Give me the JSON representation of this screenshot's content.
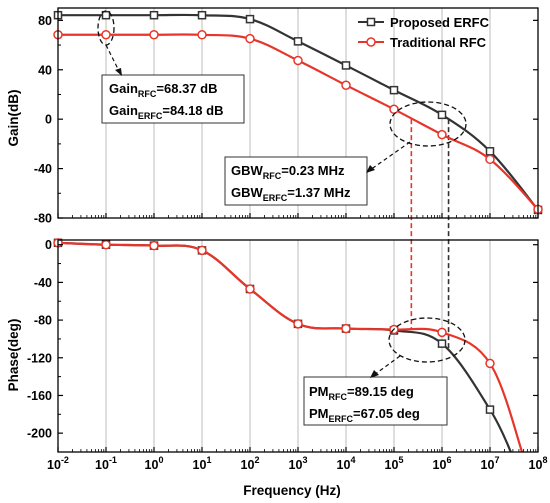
{
  "chart_data": [
    {
      "type": "line",
      "panel": "gain",
      "xscale": "log",
      "xlim": [
        0.01,
        100000000
      ],
      "ylim": [
        -80,
        90
      ],
      "ylabel": "Gain(dB)",
      "yticks": [
        -80,
        -40,
        0,
        40,
        80
      ],
      "yticks_minor": [
        -60,
        -20,
        20,
        60
      ],
      "grid": "x-major",
      "series": [
        {
          "name": "Proposed ERFC",
          "color": "#333333",
          "marker": "square",
          "x": [
            0.01,
            0.1,
            1,
            10,
            100,
            1000,
            10000,
            100000,
            1000000,
            10000000,
            100000000
          ],
          "y": [
            84.18,
            84.18,
            84.18,
            84.16,
            81,
            63,
            43.5,
            23.5,
            3.5,
            -26,
            -73.5
          ]
        },
        {
          "name": "Traditional RFC",
          "color": "#e8352a",
          "marker": "circle",
          "x": [
            0.01,
            0.1,
            1,
            10,
            100,
            1000,
            10000,
            100000,
            1000000,
            10000000,
            100000000
          ],
          "y": [
            68.37,
            68.37,
            68.37,
            68.3,
            65.2,
            47.5,
            27.5,
            8,
            -12.5,
            -32.5,
            -73
          ]
        }
      ],
      "legend": {
        "position": "top-right",
        "entries": [
          "Proposed ERFC",
          "Traditional RFC"
        ]
      },
      "annotations": [
        {
          "main1": "Gain",
          "sub1": "RFC",
          "rest1": "=68.37 dB",
          "main2": "Gain",
          "sub2": "ERFC",
          "rest2": "=84.18 dB"
        },
        {
          "main1": "GBW",
          "sub1": "RFC",
          "rest1": "=0.23 MHz",
          "main2": "GBW",
          "sub2": "ERFC",
          "rest2": "=1.37 MHz"
        }
      ]
    },
    {
      "type": "line",
      "panel": "phase",
      "xscale": "log",
      "xlim": [
        0.01,
        100000000
      ],
      "ylim": [
        -220,
        5
      ],
      "xlabel": "Frequency (Hz)",
      "ylabel": "Phase(deg)",
      "yticks": [
        -200,
        -160,
        -120,
        -80,
        -40,
        0
      ],
      "yticks_minor": [
        -180,
        -140,
        -100,
        -60,
        -20
      ],
      "grid": "x-major",
      "series": [
        {
          "name": "Proposed ERFC",
          "color": "#333333",
          "marker": "square",
          "x": [
            0.01,
            0.1,
            1,
            10,
            100,
            1000,
            10000,
            100000,
            1000000,
            10000000,
            30000000
          ],
          "y": [
            2,
            0,
            -1,
            -6,
            -47,
            -84,
            -89,
            -91,
            -105,
            -175,
            -225
          ]
        },
        {
          "name": "Traditional RFC",
          "color": "#e8352a",
          "marker": "circle",
          "x": [
            0.01,
            0.1,
            1,
            10,
            100,
            1000,
            10000,
            100000,
            1000000,
            10000000,
            50000000
          ],
          "y": [
            2,
            0,
            -1,
            -6,
            -47,
            -84,
            -89,
            -90,
            -93,
            -126,
            -225
          ]
        }
      ],
      "annotations": [
        {
          "main1": "PM",
          "sub1": "RFC",
          "rest1": "=89.15 deg",
          "main2": "PM",
          "sub2": "ERFC",
          "rest2": "=67.05 deg"
        }
      ]
    }
  ],
  "x_tick_labels": [
    {
      "base": "10",
      "exp": "-2"
    },
    {
      "base": "10",
      "exp": "-1"
    },
    {
      "base": "10",
      "exp": "0"
    },
    {
      "base": "10",
      "exp": "1"
    },
    {
      "base": "10",
      "exp": "2"
    },
    {
      "base": "10",
      "exp": "3"
    },
    {
      "base": "10",
      "exp": "4"
    },
    {
      "base": "10",
      "exp": "5"
    },
    {
      "base": "10",
      "exp": "6"
    },
    {
      "base": "10",
      "exp": "7"
    },
    {
      "base": "10",
      "exp": "8"
    }
  ]
}
